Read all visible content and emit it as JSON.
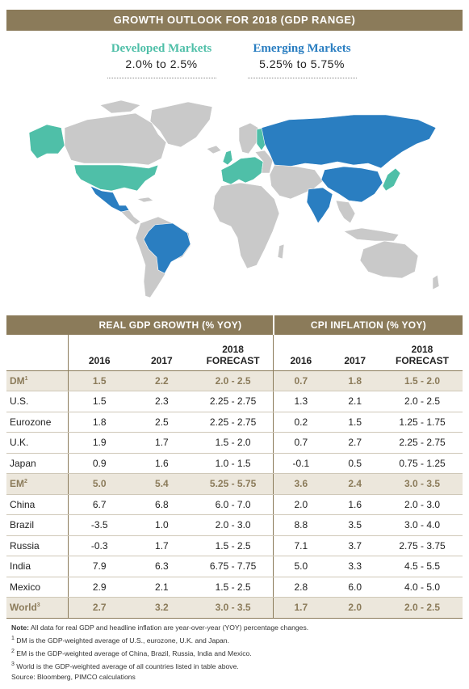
{
  "header": {
    "title": "GROWTH OUTLOOK FOR 2018 (GDP RANGE)"
  },
  "markets": {
    "developed": {
      "name": "Developed Markets",
      "range": "2.0% to 2.5%",
      "color": "#4fbfa8"
    },
    "emerging": {
      "name": "Emerging Markets",
      "range": "5.25% to 5.75%",
      "color": "#2a7ec1"
    }
  },
  "map_colors": {
    "developed": "#4fbfa8",
    "emerging": "#2a7ec1",
    "other": "#c9c9c9"
  },
  "chart_data": {
    "type": "table",
    "group_headers": [
      "REAL GDP GROWTH (% YOY)",
      "CPI INFLATION (% YOY)"
    ],
    "columns": [
      "2016",
      "2017",
      "2018 FORECAST",
      "2016",
      "2017",
      "2018 FORECAST"
    ],
    "rows": [
      {
        "label": "DM",
        "sup": "1",
        "aggregate": true,
        "values": [
          "1.5",
          "2.2",
          "2.0 - 2.5",
          "0.7",
          "1.8",
          "1.5 - 2.0"
        ]
      },
      {
        "label": "U.S.",
        "sup": "",
        "aggregate": false,
        "values": [
          "1.5",
          "2.3",
          "2.25 - 2.75",
          "1.3",
          "2.1",
          "2.0 - 2.5"
        ]
      },
      {
        "label": "Eurozone",
        "sup": "",
        "aggregate": false,
        "values": [
          "1.8",
          "2.5",
          "2.25 - 2.75",
          "0.2",
          "1.5",
          "1.25 - 1.75"
        ]
      },
      {
        "label": "U.K.",
        "sup": "",
        "aggregate": false,
        "values": [
          "1.9",
          "1.7",
          "1.5 - 2.0",
          "0.7",
          "2.7",
          "2.25 - 2.75"
        ]
      },
      {
        "label": "Japan",
        "sup": "",
        "aggregate": false,
        "values": [
          "0.9",
          "1.6",
          "1.0 - 1.5",
          "-0.1",
          "0.5",
          "0.75 - 1.25"
        ]
      },
      {
        "label": "EM",
        "sup": "2",
        "aggregate": true,
        "values": [
          "5.0",
          "5.4",
          "5.25 - 5.75",
          "3.6",
          "2.4",
          "3.0 - 3.5"
        ]
      },
      {
        "label": "China",
        "sup": "",
        "aggregate": false,
        "values": [
          "6.7",
          "6.8",
          "6.0 - 7.0",
          "2.0",
          "1.6",
          "2.0 - 3.0"
        ]
      },
      {
        "label": "Brazil",
        "sup": "",
        "aggregate": false,
        "values": [
          "-3.5",
          "1.0",
          "2.0 - 3.0",
          "8.8",
          "3.5",
          "3.0 - 4.0"
        ]
      },
      {
        "label": "Russia",
        "sup": "",
        "aggregate": false,
        "values": [
          "-0.3",
          "1.7",
          "1.5 - 2.5",
          "7.1",
          "3.7",
          "2.75 - 3.75"
        ]
      },
      {
        "label": "India",
        "sup": "",
        "aggregate": false,
        "values": [
          "7.9",
          "6.3",
          "6.75 - 7.75",
          "5.0",
          "3.3",
          "4.5 - 5.5"
        ]
      },
      {
        "label": "Mexico",
        "sup": "",
        "aggregate": false,
        "values": [
          "2.9",
          "2.1",
          "1.5 - 2.5",
          "2.8",
          "6.0",
          "4.0 - 5.0"
        ]
      },
      {
        "label": "World",
        "sup": "3",
        "aggregate": true,
        "values": [
          "2.7",
          "3.2",
          "3.0 - 3.5",
          "1.7",
          "2.0",
          "2.0 - 2.5"
        ]
      }
    ]
  },
  "notes": {
    "note_label": "Note:",
    "note_text": " All data for real GDP and headline inflation are year-over-year (YOY) percentage changes.",
    "fn1": "DM is the GDP-weighted average of U.S., eurozone, U.K. and Japan.",
    "fn2": "EM is the GDP-weighted average of China, Brazil, Russia, India and Mexico.",
    "fn3": "World is the GDP-weighted average of all countries listed in table above.",
    "source": "Source: Bloomberg, PIMCO calculations"
  }
}
